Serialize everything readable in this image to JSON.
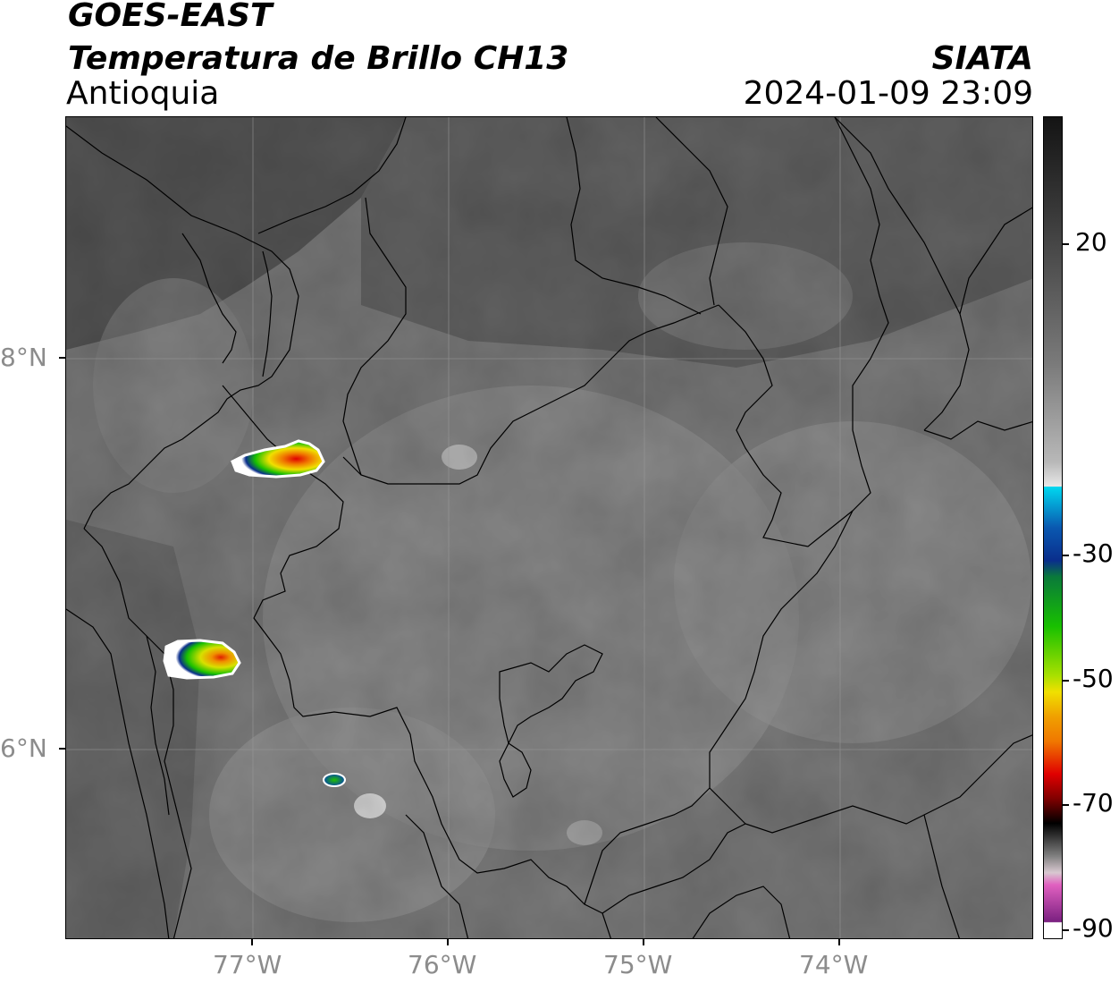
{
  "header": {
    "line1": "GOES-EAST",
    "line2": "Temperatura de Brillo CH13",
    "line3": "Antioquia",
    "org": "SIATA",
    "datetime": "2024-01-09 23:09"
  },
  "map": {
    "lon_ticks": [
      "77°W",
      "76°W",
      "75°W",
      "74°W"
    ],
    "lat_ticks": [
      "8°N",
      "6°N"
    ],
    "grid": true
  },
  "colorbar": {
    "ticks": [
      "20",
      "-30",
      "-50",
      "-70",
      "-90"
    ],
    "colors": {
      "warm_gray": "#1a1a1a",
      "cyan": "#00d8f0",
      "blue": "#0a2e8c",
      "green": "#18c000",
      "yellow": "#f0e000",
      "orange": "#f07800",
      "red": "#e00000",
      "black": "#000000",
      "pink": "#e060c0",
      "purple": "#7a2080"
    }
  },
  "cloud_cells": [
    {
      "name": "cell-north",
      "min_temp_class": "-55"
    },
    {
      "name": "cell-west",
      "min_temp_class": "-55"
    },
    {
      "name": "cell-small",
      "min_temp_class": "-35"
    }
  ]
}
